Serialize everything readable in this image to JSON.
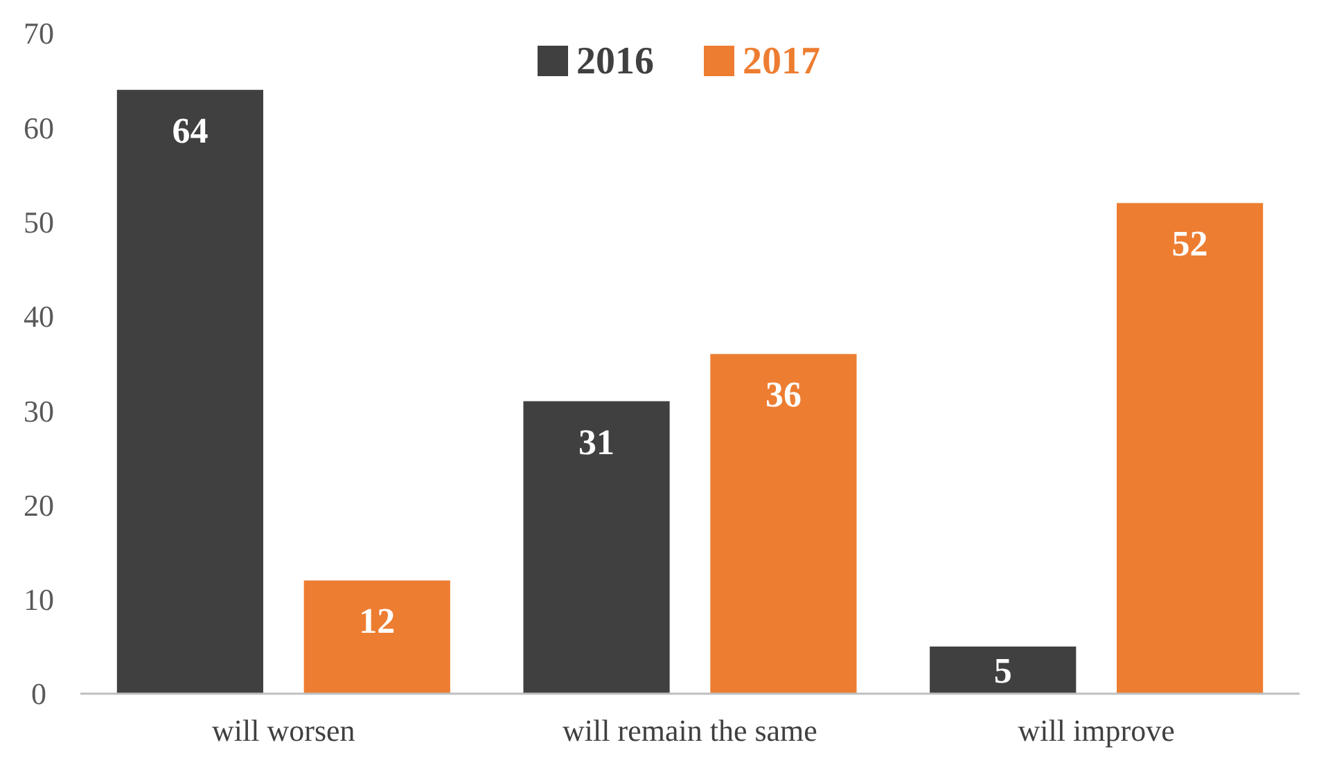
{
  "chart_data": {
    "type": "bar",
    "categories": [
      "will worsen",
      "will remain the same",
      "will improve"
    ],
    "series": [
      {
        "name": "2016",
        "color": "#404040",
        "values": [
          64,
          31,
          5
        ]
      },
      {
        "name": "2017",
        "color": "#ed7d31",
        "values": [
          12,
          36,
          52
        ]
      }
    ],
    "ylim": [
      0,
      70
    ],
    "yticks": [
      0,
      10,
      20,
      30,
      40,
      50,
      60,
      70
    ],
    "grid": false,
    "legend": "top",
    "data_labels": true
  }
}
